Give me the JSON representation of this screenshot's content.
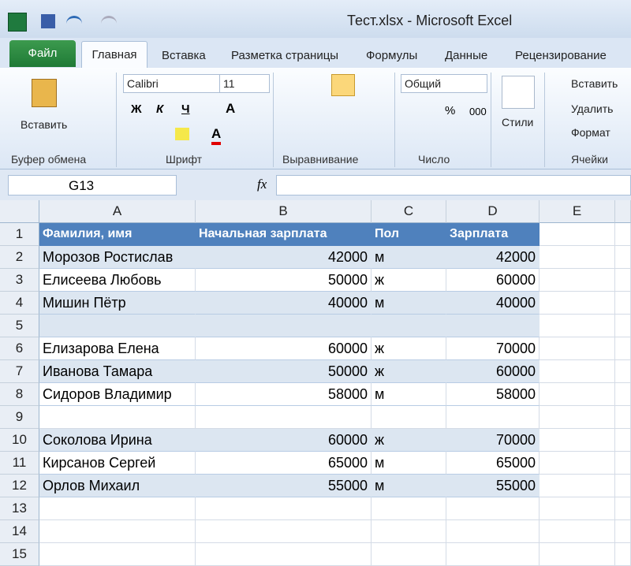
{
  "window": {
    "title": "Тест.xlsx - Microsoft Excel"
  },
  "ribbon": {
    "file_tab": "Файл",
    "tabs": [
      "Главная",
      "Вставка",
      "Разметка страницы",
      "Формулы",
      "Данные",
      "Рецензирование"
    ],
    "clipboard": {
      "paste": "Вставить",
      "label": "Буфер обмена"
    },
    "font": {
      "name": "Calibri",
      "size": "11",
      "bold": "Ж",
      "italic": "К",
      "underline": "Ч",
      "grow": "A",
      "color": "A",
      "label": "Шрифт"
    },
    "alignment": {
      "label": "Выравнивание"
    },
    "number": {
      "format": "Общий",
      "percent": "%",
      "thousands": "000",
      "label": "Число"
    },
    "styles": {
      "button": "Стили"
    },
    "cells": {
      "insert": "Вставить",
      "delete": "Удалить",
      "format": "Формат",
      "label": "Ячейки"
    }
  },
  "formula_bar": {
    "name_box": "G13",
    "fx": "fx"
  },
  "sheet": {
    "columns": [
      "A",
      "B",
      "C",
      "D",
      "E"
    ],
    "rows": [
      {
        "number": "1",
        "cells": [
          "Фамилия, имя",
          "Начальная зарплата",
          "Пол",
          "Зарплата"
        ]
      },
      {
        "number": "2",
        "cells": [
          "Морозов Ростислав",
          42000,
          "м",
          42000
        ]
      },
      {
        "number": "3",
        "cells": [
          "Елисеева Любовь",
          50000,
          "ж",
          60000
        ]
      },
      {
        "number": "4",
        "cells": [
          "Мишин Пётр",
          40000,
          "м",
          40000
        ]
      },
      {
        "number": "5"
      },
      {
        "number": "6",
        "cells": [
          "Елизарова Елена",
          60000,
          "ж",
          70000
        ]
      },
      {
        "number": "7",
        "cells": [
          "Иванова Тамара",
          50000,
          "ж",
          60000
        ]
      },
      {
        "number": "8",
        "cells": [
          "Сидоров Владимир",
          58000,
          "м",
          58000
        ]
      },
      {
        "number": "9"
      },
      {
        "number": "10",
        "cells": [
          "Соколова Ирина",
          60000,
          "ж",
          70000
        ]
      },
      {
        "number": "11",
        "cells": [
          "Кирсанов Сергей",
          65000,
          "м",
          65000
        ]
      },
      {
        "number": "12",
        "cells": [
          "Орлов Михаил",
          55000,
          "м",
          55000
        ]
      },
      {
        "number": "13"
      },
      {
        "number": "14"
      },
      {
        "number": "15"
      }
    ]
  }
}
